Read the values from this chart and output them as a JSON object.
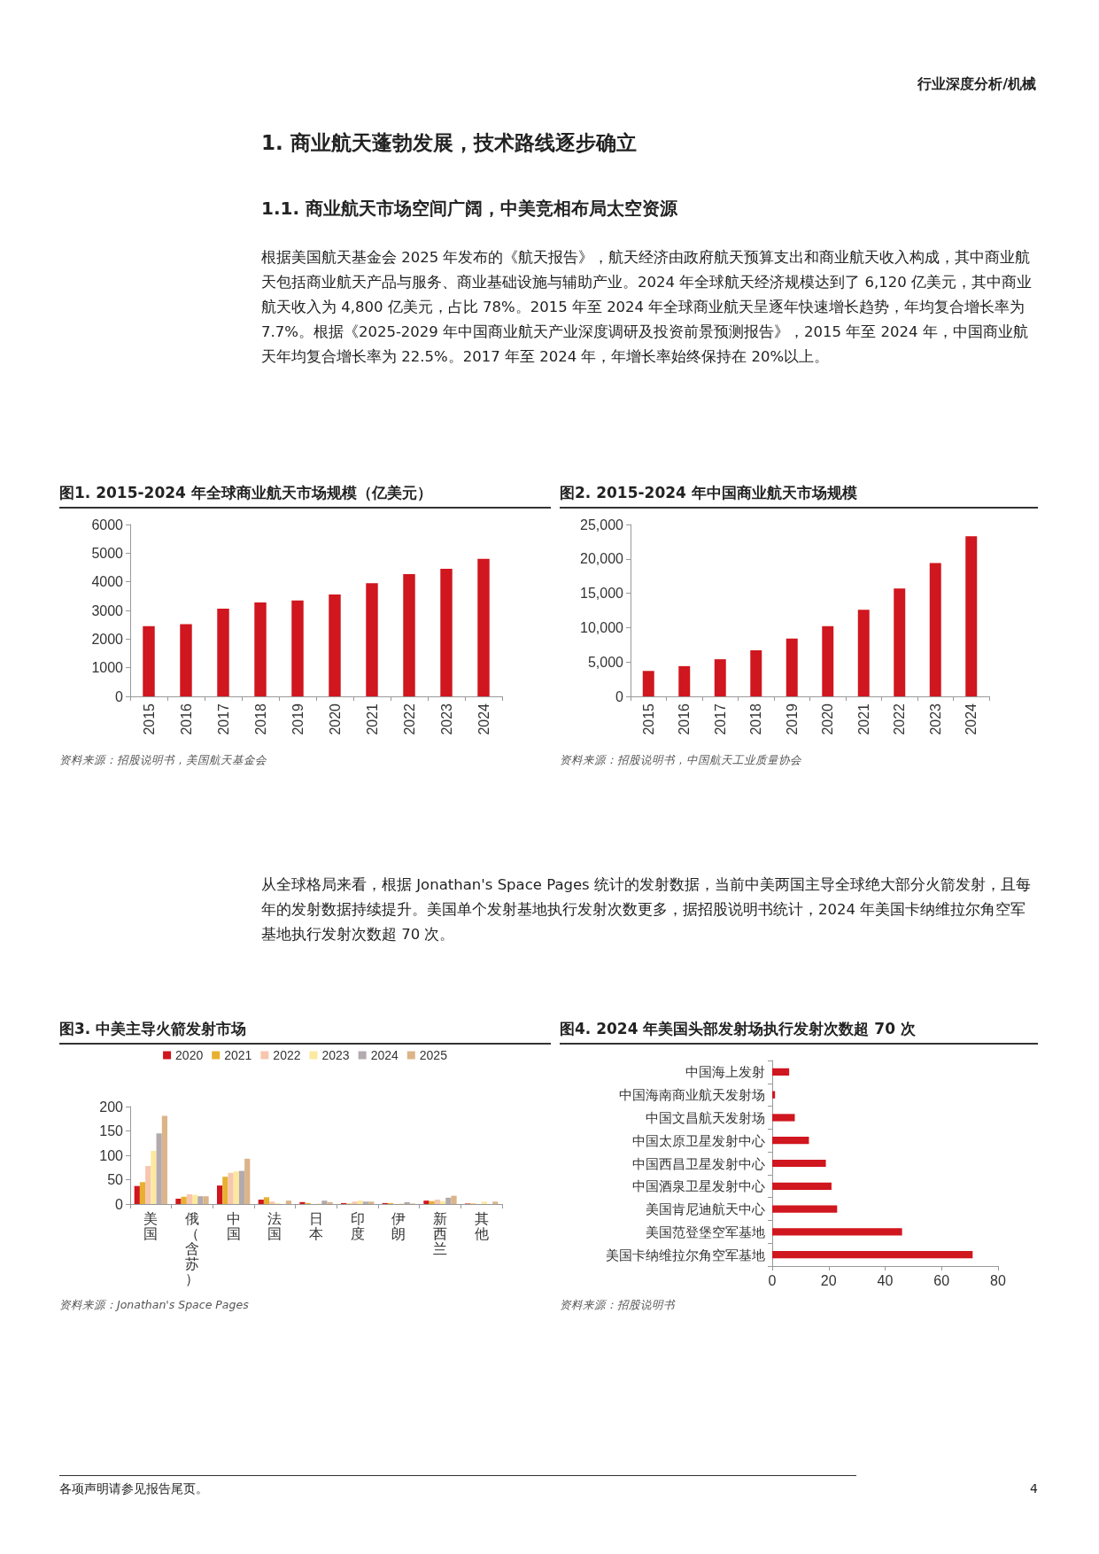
{
  "chart_data": [
    {
      "type": "other",
      "annotations": [
        "行业深度分析/机械",
        "1. 商业航天蓬勃发展，技术路线逐步确立",
        "1.1. 商业航天市场空间广阔，中美竞相布局太空资源",
        "根据美国航天基金会 2025 年发布的《航天报告》，航天经济由政府航天预算支出和商业航天收入构成，其中商业航天包括商业航天产品与服务、商业基础设施与辅助产业。2024 年全球航天经济规模达到了 6,120 亿美元，其中商业航天收入为 4,800 亿美元，占比 78%。2015 年至 2024 年全球商业航天呈逐年快速增长趋势，年均复合增长率为 7.7%。根据《2025-2029 年中国商业航天产业深度调研及投资前景预测报告》，2015 年至 2024 年，中国商业航天年均复合增长率为 22.5%。2017 年至 2024 年，年增长率始终保持在 20%以上。"
      ]
    },
    {
      "type": "bar",
      "title": "图1. 2015-2024 年全球商业航天市场规模（亿美元）",
      "categories": [
        "2015",
        "2016",
        "2017",
        "2018",
        "2019",
        "2020",
        "2021",
        "2022",
        "2023",
        "2024"
      ],
      "values": [
        2450,
        2520,
        3060,
        3280,
        3350,
        3560,
        3950,
        4270,
        4450,
        4800
      ],
      "color": "#d0161e",
      "ylim": [
        0,
        6000
      ],
      "yticks": [
        0,
        1000,
        2000,
        3000,
        4000,
        5000,
        6000
      ],
      "annotations": [
        "资料来源：招股说明书，美国航天基金会"
      ]
    },
    {
      "type": "bar",
      "title": "图2. 2015-2024 年中国商业航天市场规模",
      "categories": [
        "2015",
        "2016",
        "2017",
        "2018",
        "2019",
        "2020",
        "2021",
        "2022",
        "2023",
        "2024"
      ],
      "values": [
        3700,
        4400,
        5400,
        6700,
        8400,
        10200,
        12600,
        15700,
        19400,
        23300
      ],
      "color": "#d0161e",
      "ylim": [
        0,
        25000
      ],
      "yticks": [
        0,
        {
          "value": 5000,
          "label": "5,000"
        },
        {
          "value": 10000,
          "label": "10,000"
        },
        {
          "value": 15000,
          "label": "15,000"
        },
        {
          "value": 20000,
          "label": "20,000"
        },
        {
          "value": 25000,
          "label": "25,000"
        }
      ],
      "annotations": [
        "资料来源：招股说明书，中国航天工业质量协会"
      ]
    },
    {
      "type": "other",
      "annotations": [
        "从全球格局来看，根据 Jonathan's Space Pages 统计的发射数据，当前中美两国主导全球绝大部分火箭发射，且每年的发射数据持续提升。美国单个发射基地执行发射次数更多，据招股说明书统计，2024 年美国卡纳维拉尔角空军基地执行发射次数超 70 次。"
      ]
    },
    {
      "type": "bar",
      "title": "图3. 中美主导火箭发射市场",
      "categories": [
        "美国",
        "俄（含苏）",
        "中国",
        "法国",
        "日本",
        "印度",
        "伊朗",
        "新西兰",
        "其他"
      ],
      "series": [
        {
          "name": "2020",
          "color": "#d0161e",
          "values": [
            37,
            11,
            38,
            9,
            4,
            2,
            2,
            7,
            1
          ]
        },
        {
          "name": "2021",
          "color": "#e8b030",
          "values": [
            45,
            15,
            56,
            14,
            2,
            1,
            2,
            6,
            1
          ]
        },
        {
          "name": "2022",
          "color": "#f6c6ae",
          "values": [
            78,
            20,
            64,
            5,
            0,
            5,
            0,
            9,
            null
          ]
        },
        {
          "name": "2023",
          "color": "#fde8a0",
          "values": [
            109,
            19,
            67,
            2,
            1,
            7,
            1,
            6,
            5
          ]
        },
        {
          "name": "2024",
          "color": "#b2aaae",
          "values": [
            145,
            16,
            68,
            null,
            7,
            5,
            4,
            13,
            null
          ]
        },
        {
          "name": "2025",
          "color": "#dcb48a",
          "values": [
            181,
            16,
            93,
            7,
            4,
            5,
            1,
            17,
            5
          ]
        }
      ],
      "ylim": [
        0,
        200
      ],
      "yticks": [
        0,
        50,
        100,
        150,
        200
      ],
      "legend": "top",
      "annotations": [
        "资料来源：Jonathan's Space Pages"
      ]
    },
    {
      "type": "bar",
      "orientation": "horizontal",
      "title": "图4. 2024 年美国头部发射场执行发射次数超 70 次",
      "categories": [
        "中国海上发射",
        "中国海南商业航天发射场",
        "中国文昌航天发射场",
        "中国太原卫星发射中心",
        "中国西昌卫星发射中心",
        "中国酒泉卫星发射中心",
        "美国肯尼迪航天中心",
        "美国范登堡空军基地",
        "美国卡纳维拉尔角空军基地"
      ],
      "values": [
        6,
        1,
        8,
        13,
        19,
        21,
        23,
        46,
        71
      ],
      "color": "#d0161e",
      "xlim": [
        0,
        80
      ],
      "xticks": [
        0,
        20,
        40,
        60,
        80
      ],
      "annotations": [
        "资料来源：招股说明书"
      ]
    },
    {
      "type": "other",
      "annotations": [
        "各项声明请参见报告尾页。",
        "4"
      ]
    }
  ]
}
